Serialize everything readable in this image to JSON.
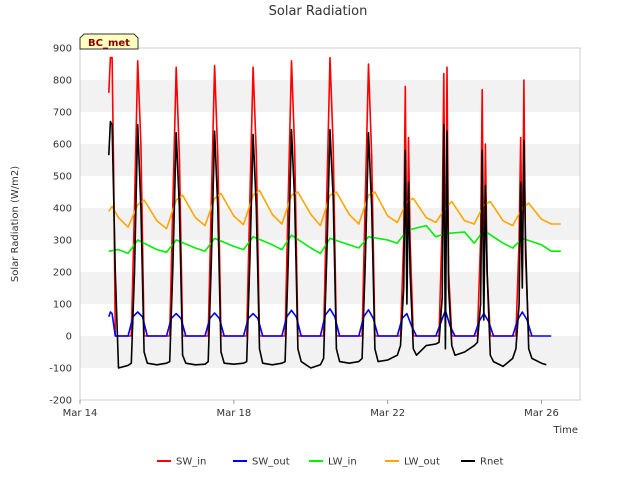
{
  "chart_data": {
    "type": "line",
    "title": "Solar Radiation",
    "xlabel": "Time",
    "ylabel": "Solar Radiation (W/m2)",
    "badge": "BC_met",
    "ylim": [
      -200,
      900
    ],
    "yticks": [
      -200,
      -100,
      0,
      100,
      200,
      300,
      400,
      500,
      600,
      700,
      800,
      900
    ],
    "xlim": [
      "2023-03-14",
      "2023-03-27"
    ],
    "xticks": [
      {
        "date": "2023-03-14",
        "label": "Mar 14"
      },
      {
        "date": "2023-03-18",
        "label": "Mar 18"
      },
      {
        "date": "2023-03-22",
        "label": "Mar 22"
      },
      {
        "date": "2023-03-26",
        "label": "Mar 26"
      }
    ],
    "grid": "horizontal alternating bands",
    "legend_position": "bottom",
    "series": [
      {
        "name": "SW_in",
        "color": "#ff0000",
        "x": [
          "2023-03-14 18:00",
          "2023-03-14 19:00",
          "2023-03-14 20:00",
          "2023-03-14 21:00",
          "2023-03-14 22:00",
          "2023-03-15 06:00",
          "2023-03-15 08:00",
          "2023-03-15 10:00",
          "2023-03-15 12:00",
          "2023-03-15 14:00",
          "2023-03-15 16:00",
          "2023-03-15 18:00",
          "2023-03-16 06:00",
          "2023-03-16 08:00",
          "2023-03-16 10:00",
          "2023-03-16 12:00",
          "2023-03-16 14:00",
          "2023-03-16 16:00",
          "2023-03-16 18:00",
          "2023-03-17 06:00",
          "2023-03-17 08:00",
          "2023-03-17 10:00",
          "2023-03-17 12:00",
          "2023-03-17 14:00",
          "2023-03-17 16:00",
          "2023-03-17 18:00",
          "2023-03-18 06:00",
          "2023-03-18 08:00",
          "2023-03-18 10:00",
          "2023-03-18 12:00",
          "2023-03-18 14:00",
          "2023-03-18 16:00",
          "2023-03-18 18:00",
          "2023-03-19 06:00",
          "2023-03-19 08:00",
          "2023-03-19 10:00",
          "2023-03-19 12:00",
          "2023-03-19 14:00",
          "2023-03-19 16:00",
          "2023-03-19 18:00",
          "2023-03-20 06:00",
          "2023-03-20 08:00",
          "2023-03-20 10:00",
          "2023-03-20 12:00",
          "2023-03-20 14:00",
          "2023-03-20 16:00",
          "2023-03-20 18:00",
          "2023-03-21 06:00",
          "2023-03-21 08:00",
          "2023-03-21 10:00",
          "2023-03-21 12:00",
          "2023-03-21 14:00",
          "2023-03-21 16:00",
          "2023-03-21 18:00",
          "2023-03-22 06:00",
          "2023-03-22 08:00",
          "2023-03-22 10:00",
          "2023-03-22 11:00",
          "2023-03-22 12:00",
          "2023-03-22 13:00",
          "2023-03-22 14:00",
          "2023-03-22 16:00",
          "2023-03-22 18:00",
          "2023-03-23 06:00",
          "2023-03-23 08:00",
          "2023-03-23 10:00",
          "2023-03-23 11:00",
          "2023-03-23 12:00",
          "2023-03-23 13:00",
          "2023-03-23 14:00",
          "2023-03-23 16:00",
          "2023-03-23 18:00",
          "2023-03-24 06:00",
          "2023-03-24 08:00",
          "2023-03-24 10:00",
          "2023-03-24 11:00",
          "2023-03-24 12:00",
          "2023-03-24 13:00",
          "2023-03-24 14:00",
          "2023-03-24 16:00",
          "2023-03-24 18:00",
          "2023-03-25 06:00",
          "2023-03-25 08:00",
          "2023-03-25 10:00",
          "2023-03-25 11:00",
          "2023-03-25 12:00",
          "2023-03-25 13:00",
          "2023-03-25 14:00",
          "2023-03-25 16:00",
          "2023-03-25 18:00"
        ],
        "y": [
          760,
          870,
          870,
          500,
          0,
          0,
          0,
          400,
          860,
          600,
          0,
          0,
          0,
          0,
          420,
          840,
          560,
          0,
          0,
          0,
          0,
          430,
          845,
          560,
          0,
          0,
          0,
          0,
          430,
          840,
          570,
          0,
          0,
          0,
          0,
          440,
          860,
          580,
          0,
          0,
          0,
          0,
          440,
          870,
          590,
          0,
          0,
          0,
          0,
          430,
          850,
          560,
          0,
          0,
          0,
          0,
          300,
          780,
          150,
          620,
          300,
          0,
          0,
          0,
          0,
          350,
          820,
          90,
          840,
          200,
          0,
          0,
          0,
          0,
          300,
          770,
          120,
          600,
          200,
          0,
          0,
          0,
          0,
          300,
          620,
          200,
          800,
          250,
          0,
          0
        ]
      },
      {
        "name": "SW_out",
        "color": "#0000ff",
        "x": [
          "2023-03-14 18:00",
          "2023-03-14 19:00",
          "2023-03-14 20:00",
          "2023-03-14 22:00",
          "2023-03-15 06:00",
          "2023-03-15 09:00",
          "2023-03-15 12:00",
          "2023-03-15 15:00",
          "2023-03-15 18:00",
          "2023-03-16 06:00",
          "2023-03-16 09:00",
          "2023-03-16 12:00",
          "2023-03-16 15:00",
          "2023-03-16 18:00",
          "2023-03-17 06:00",
          "2023-03-17 09:00",
          "2023-03-17 12:00",
          "2023-03-17 15:00",
          "2023-03-17 18:00",
          "2023-03-18 06:00",
          "2023-03-18 09:00",
          "2023-03-18 12:00",
          "2023-03-18 15:00",
          "2023-03-18 18:00",
          "2023-03-19 06:00",
          "2023-03-19 09:00",
          "2023-03-19 12:00",
          "2023-03-19 15:00",
          "2023-03-19 18:00",
          "2023-03-20 06:00",
          "2023-03-20 09:00",
          "2023-03-20 12:00",
          "2023-03-20 15:00",
          "2023-03-20 18:00",
          "2023-03-21 06:00",
          "2023-03-21 09:00",
          "2023-03-21 12:00",
          "2023-03-21 15:00",
          "2023-03-21 18:00",
          "2023-03-22 06:00",
          "2023-03-22 09:00",
          "2023-03-22 12:00",
          "2023-03-22 15:00",
          "2023-03-22 18:00",
          "2023-03-23 06:00",
          "2023-03-23 09:00",
          "2023-03-23 12:00",
          "2023-03-23 15:00",
          "2023-03-23 18:00",
          "2023-03-24 06:00",
          "2023-03-24 09:00",
          "2023-03-24 12:00",
          "2023-03-24 15:00",
          "2023-03-24 18:00",
          "2023-03-25 06:00",
          "2023-03-25 09:00",
          "2023-03-25 12:00",
          "2023-03-25 15:00",
          "2023-03-25 18:00",
          "2023-03-26 06:00"
        ],
        "y": [
          60,
          75,
          70,
          0,
          0,
          60,
          75,
          60,
          0,
          0,
          55,
          70,
          55,
          0,
          0,
          55,
          72,
          55,
          0,
          0,
          55,
          70,
          55,
          0,
          0,
          60,
          80,
          60,
          0,
          0,
          65,
          85,
          60,
          0,
          0,
          60,
          82,
          55,
          0,
          0,
          55,
          70,
          30,
          0,
          0,
          40,
          80,
          30,
          0,
          0,
          45,
          70,
          45,
          0,
          0,
          50,
          75,
          50,
          0,
          0
        ]
      },
      {
        "name": "LW_in",
        "color": "#00ee00",
        "x": [
          "2023-03-14 18:00",
          "2023-03-15 00:00",
          "2023-03-15 06:00",
          "2023-03-15 12:00",
          "2023-03-16 00:00",
          "2023-03-16 06:00",
          "2023-03-16 12:00",
          "2023-03-17 00:00",
          "2023-03-17 06:00",
          "2023-03-17 12:00",
          "2023-03-18 00:00",
          "2023-03-18 06:00",
          "2023-03-18 12:00",
          "2023-03-19 00:00",
          "2023-03-19 06:00",
          "2023-03-19 12:00",
          "2023-03-20 00:00",
          "2023-03-20 06:00",
          "2023-03-20 12:00",
          "2023-03-21 00:00",
          "2023-03-21 06:00",
          "2023-03-21 12:00",
          "2023-03-22 00:00",
          "2023-03-22 06:00",
          "2023-03-22 12:00",
          "2023-03-23 00:00",
          "2023-03-23 06:00",
          "2023-03-23 12:00",
          "2023-03-24 00:00",
          "2023-03-24 06:00",
          "2023-03-24 12:00",
          "2023-03-25 00:00",
          "2023-03-25 06:00",
          "2023-03-25 12:00",
          "2023-03-26 00:00",
          "2023-03-26 06:00",
          "2023-03-26 12:00"
        ],
        "y": [
          265,
          270,
          258,
          300,
          270,
          262,
          300,
          275,
          265,
          305,
          280,
          270,
          310,
          285,
          270,
          315,
          275,
          258,
          305,
          285,
          275,
          310,
          300,
          290,
          330,
          345,
          310,
          320,
          325,
          290,
          330,
          290,
          275,
          305,
          285,
          265,
          265
        ]
      },
      {
        "name": "LW_out",
        "color": "#ffa500",
        "x": [
          "2023-03-14 18:00",
          "2023-03-14 20:00",
          "2023-03-15 00:00",
          "2023-03-15 06:00",
          "2023-03-15 12:00",
          "2023-03-15 16:00",
          "2023-03-16 00:00",
          "2023-03-16 06:00",
          "2023-03-16 12:00",
          "2023-03-16 16:00",
          "2023-03-17 00:00",
          "2023-03-17 06:00",
          "2023-03-17 12:00",
          "2023-03-17 16:00",
          "2023-03-18 00:00",
          "2023-03-18 06:00",
          "2023-03-18 12:00",
          "2023-03-18 16:00",
          "2023-03-19 00:00",
          "2023-03-19 06:00",
          "2023-03-19 12:00",
          "2023-03-19 16:00",
          "2023-03-20 00:00",
          "2023-03-20 06:00",
          "2023-03-20 12:00",
          "2023-03-20 16:00",
          "2023-03-21 00:00",
          "2023-03-21 06:00",
          "2023-03-21 12:00",
          "2023-03-21 16:00",
          "2023-03-22 00:00",
          "2023-03-22 06:00",
          "2023-03-22 12:00",
          "2023-03-22 16:00",
          "2023-03-23 00:00",
          "2023-03-23 06:00",
          "2023-03-23 12:00",
          "2023-03-23 16:00",
          "2023-03-24 00:00",
          "2023-03-24 06:00",
          "2023-03-24 12:00",
          "2023-03-24 16:00",
          "2023-03-25 00:00",
          "2023-03-25 06:00",
          "2023-03-25 12:00",
          "2023-03-25 16:00",
          "2023-03-26 00:00",
          "2023-03-26 06:00",
          "2023-03-26 12:00"
        ],
        "y": [
          390,
          405,
          370,
          340,
          410,
          425,
          360,
          335,
          425,
          440,
          370,
          345,
          430,
          445,
          375,
          348,
          440,
          455,
          380,
          350,
          440,
          450,
          380,
          345,
          440,
          450,
          380,
          350,
          440,
          450,
          375,
          355,
          420,
          430,
          370,
          355,
          400,
          420,
          360,
          350,
          410,
          420,
          360,
          345,
          400,
          415,
          365,
          350,
          350
        ]
      },
      {
        "name": "Rnet",
        "color": "#000000",
        "x": [
          "2023-03-14 18:00",
          "2023-03-14 19:00",
          "2023-03-14 20:00",
          "2023-03-14 22:00",
          "2023-03-15 00:00",
          "2023-03-15 06:00",
          "2023-03-15 08:00",
          "2023-03-15 10:00",
          "2023-03-15 12:00",
          "2023-03-15 14:00",
          "2023-03-15 16:00",
          "2023-03-15 18:00",
          "2023-03-16 00:00",
          "2023-03-16 06:00",
          "2023-03-16 08:00",
          "2023-03-16 10:00",
          "2023-03-16 12:00",
          "2023-03-16 14:00",
          "2023-03-16 16:00",
          "2023-03-16 18:00",
          "2023-03-17 00:00",
          "2023-03-17 06:00",
          "2023-03-17 08:00",
          "2023-03-17 10:00",
          "2023-03-17 12:00",
          "2023-03-17 14:00",
          "2023-03-17 16:00",
          "2023-03-17 18:00",
          "2023-03-18 00:00",
          "2023-03-18 06:00",
          "2023-03-18 08:00",
          "2023-03-18 10:00",
          "2023-03-18 12:00",
          "2023-03-18 14:00",
          "2023-03-18 16:00",
          "2023-03-18 18:00",
          "2023-03-19 00:00",
          "2023-03-19 06:00",
          "2023-03-19 08:00",
          "2023-03-19 10:00",
          "2023-03-19 12:00",
          "2023-03-19 14:00",
          "2023-03-19 16:00",
          "2023-03-19 18:00",
          "2023-03-20 00:00",
          "2023-03-20 06:00",
          "2023-03-20 08:00",
          "2023-03-20 10:00",
          "2023-03-20 12:00",
          "2023-03-20 14:00",
          "2023-03-20 16:00",
          "2023-03-20 18:00",
          "2023-03-21 00:00",
          "2023-03-21 06:00",
          "2023-03-21 08:00",
          "2023-03-21 10:00",
          "2023-03-21 12:00",
          "2023-03-21 14:00",
          "2023-03-21 16:00",
          "2023-03-21 18:00",
          "2023-03-22 00:00",
          "2023-03-22 06:00",
          "2023-03-22 08:00",
          "2023-03-22 10:00",
          "2023-03-22 11:00",
          "2023-03-22 12:00",
          "2023-03-22 13:00",
          "2023-03-22 14:00",
          "2023-03-22 16:00",
          "2023-03-22 18:00",
          "2023-03-23 00:00",
          "2023-03-23 06:00",
          "2023-03-23 08:00",
          "2023-03-23 10:00",
          "2023-03-23 11:00",
          "2023-03-23 12:00",
          "2023-03-23 13:00",
          "2023-03-23 14:00",
          "2023-03-23 16:00",
          "2023-03-23 18:00",
          "2023-03-24 00:00",
          "2023-03-24 06:00",
          "2023-03-24 08:00",
          "2023-03-24 10:00",
          "2023-03-24 11:00",
          "2023-03-24 12:00",
          "2023-03-24 13:00",
          "2023-03-24 14:00",
          "2023-03-24 16:00",
          "2023-03-24 18:00",
          "2023-03-25 00:00",
          "2023-03-25 06:00",
          "2023-03-25 08:00",
          "2023-03-25 10:00",
          "2023-03-25 11:00",
          "2023-03-25 12:00",
          "2023-03-25 13:00",
          "2023-03-25 14:00",
          "2023-03-25 16:00",
          "2023-03-25 18:00",
          "2023-03-26 00:00",
          "2023-03-26 03:00"
        ],
        "y": [
          565,
          670,
          660,
          200,
          -100,
          -92,
          -85,
          200,
          660,
          400,
          -50,
          -85,
          -90,
          -85,
          -80,
          220,
          635,
          400,
          -60,
          -85,
          -90,
          -88,
          -80,
          240,
          640,
          400,
          -50,
          -85,
          -88,
          -85,
          -80,
          240,
          630,
          400,
          -40,
          -85,
          -90,
          -85,
          -80,
          240,
          645,
          420,
          -40,
          -80,
          -100,
          -90,
          -70,
          250,
          645,
          430,
          -40,
          -80,
          -85,
          -80,
          -70,
          230,
          635,
          400,
          -40,
          -80,
          -75,
          -60,
          -30,
          150,
          580,
          100,
          480,
          200,
          -40,
          -60,
          -30,
          -25,
          -20,
          120,
          660,
          -40,
          640,
          150,
          -30,
          -60,
          -50,
          -30,
          -20,
          100,
          580,
          50,
          470,
          200,
          -60,
          -80,
          -95,
          -70,
          -40,
          100,
          480,
          150,
          610,
          300,
          -40,
          -70,
          -85,
          -90
        ]
      }
    ]
  }
}
